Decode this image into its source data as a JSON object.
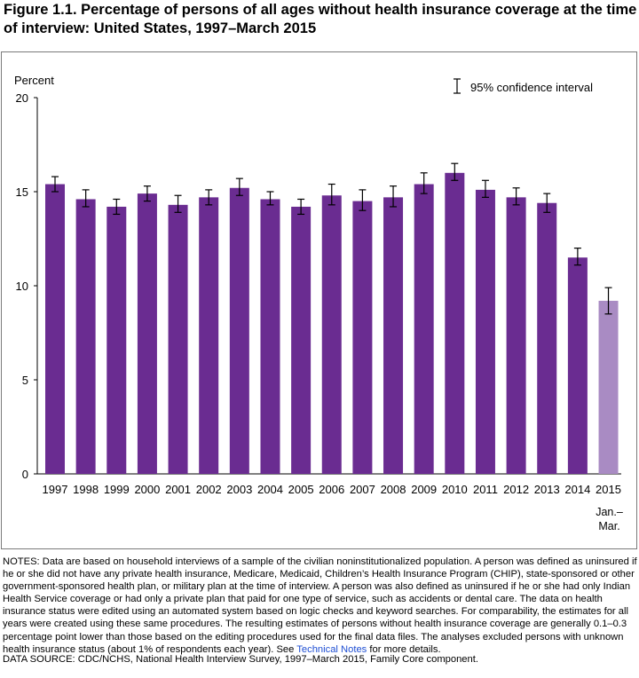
{
  "title": "Figure 1.1. Percentage of persons of all ages without health insurance coverage at the time of interview: United States, 1997–March 2015",
  "notes": {
    "text": "NOTES: Data are based on household interviews of a sample of the civilian noninstitutionalized population. A person was defined as uninsured if he or she did not have any private health insurance, Medicare, Medicaid, Children’s Health Insurance Program (CHIP), state-sponsored or other government-sponsored health plan, or military plan at the time of interview. A person was also defined as uninsured if he or she had only Indian Health Service coverage or had only a private plan that paid for one type of service, such as accidents or dental care. The data on health insurance status were edited using an automated system based on logic checks and keyword searches. For comparability, the estimates for all years were created using these same procedures. The resulting estimates of persons without health insurance coverage are generally 0.1–0.3 percentage point lower than those based on the editing procedures used for the final data files. The analyses excluded persons with unknown health insurance status (about 1% of respondents each year). See",
    "link_text": "Technical Notes",
    "after_link": " for more details."
  },
  "source": "DATA SOURCE: CDC/NCHS, National Health Interview Survey, 1997–March 2015, Family Core component.",
  "colors": {
    "bar": "#6a2c91",
    "bar_partial": "#a98bc3",
    "text": "#000000",
    "link": "#1f4fd3"
  },
  "chart_data": {
    "type": "bar",
    "ylabel": "Percent",
    "ylim": [
      0,
      20
    ],
    "yticks": [
      0,
      5,
      10,
      15,
      20
    ],
    "legend": {
      "label": "95% confidence interval",
      "placement": "top-right"
    },
    "categories": [
      "1997",
      "1998",
      "1999",
      "2000",
      "2001",
      "2002",
      "2003",
      "2004",
      "2005",
      "2006",
      "2007",
      "2008",
      "2009",
      "2010",
      "2011",
      "2012",
      "2013",
      "2014",
      "2015"
    ],
    "category_sublabels": {
      "2015": "Jan.– Mar."
    },
    "values": [
      15.4,
      14.6,
      14.2,
      14.9,
      14.3,
      14.7,
      15.2,
      14.6,
      14.2,
      14.8,
      14.5,
      14.7,
      15.4,
      16.0,
      15.1,
      14.7,
      14.4,
      11.5,
      9.2
    ],
    "ci_low": [
      15.0,
      14.2,
      13.8,
      14.5,
      13.9,
      14.3,
      14.8,
      14.3,
      13.8,
      14.3,
      14.0,
      14.2,
      14.9,
      15.6,
      14.7,
      14.3,
      13.9,
      11.1,
      8.5
    ],
    "ci_high": [
      15.8,
      15.1,
      14.6,
      15.3,
      14.8,
      15.1,
      15.7,
      15.0,
      14.6,
      15.4,
      15.1,
      15.3,
      16.0,
      16.5,
      15.6,
      15.2,
      14.9,
      12.0,
      9.9
    ],
    "partial_year": [
      "2015"
    ]
  }
}
